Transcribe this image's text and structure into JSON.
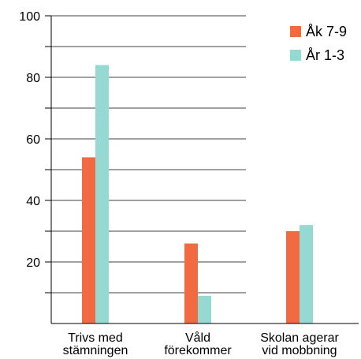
{
  "chart_data": {
    "type": "bar",
    "categories": [
      [
        "Trivs med",
        "stämningen"
      ],
      [
        "Våld",
        "förekommer"
      ],
      [
        "Skolan agerar",
        "vid mobbning"
      ]
    ],
    "series": [
      {
        "name": "Åk 7-9",
        "values": [
          54,
          26,
          30
        ],
        "color": "#f26a42"
      },
      {
        "name": "År 1-3",
        "values": [
          84,
          9,
          32
        ],
        "color": "#96d8d2"
      }
    ],
    "ylim": [
      0,
      100
    ],
    "y_ticks": [
      20,
      40,
      60,
      80,
      100
    ],
    "y_minor_ticks": [
      10,
      30,
      50,
      70,
      90
    ],
    "grid": true,
    "legend_position": "top-right",
    "title": "",
    "xlabel": "",
    "ylabel": ""
  }
}
